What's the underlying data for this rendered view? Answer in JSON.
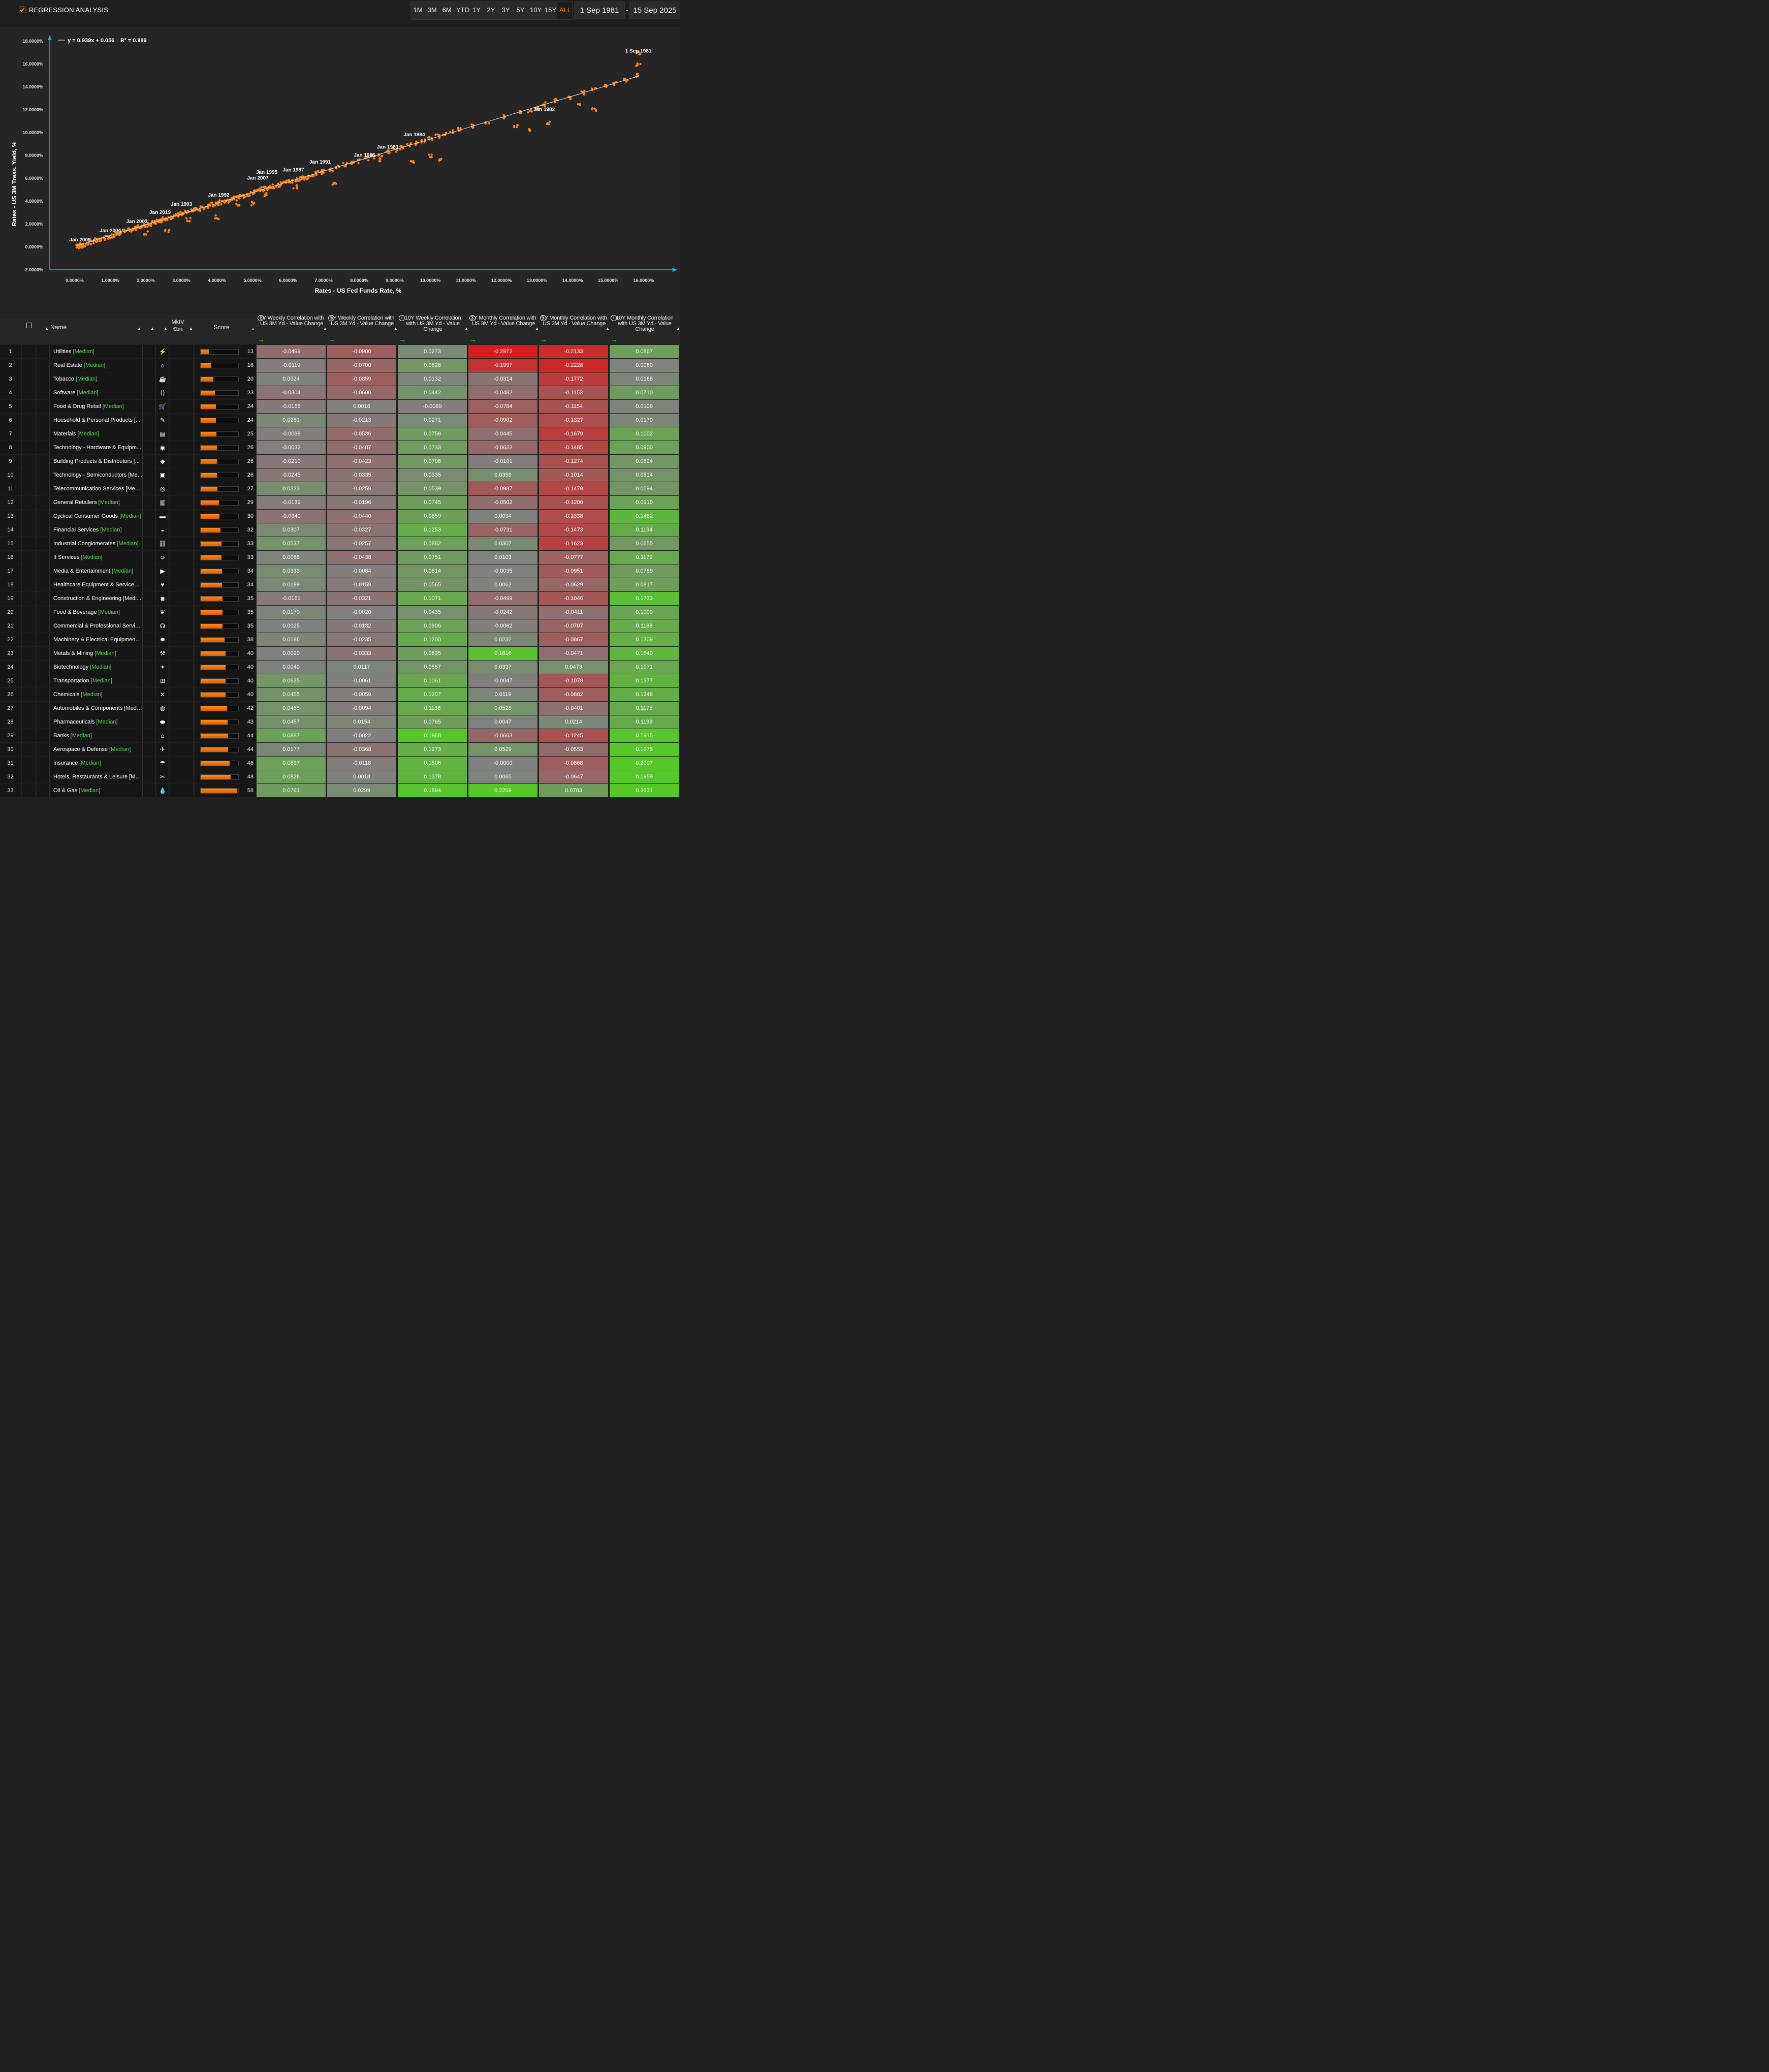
{
  "header": {
    "checkbox_label": "REGRESSION ANALYSIS",
    "ranges": [
      "1M",
      "3M",
      "6M",
      "YTD",
      "1Y",
      "2Y",
      "3Y",
      "5Y",
      "10Y",
      "15Y",
      "ALL"
    ],
    "active_range": "ALL",
    "date_from": "1 Sep 1981",
    "date_separator": "-",
    "date_to": "15 Sep 2025",
    "accent_color": "#ff7f11"
  },
  "chart_data": {
    "type": "scatter",
    "xlabel": "Rates - US Fed Funds Rate, %",
    "ylabel": "Rates - US 3M Treas. Yield, %",
    "xlim": [
      -0.7,
      16.95
    ],
    "ylim": [
      -2,
      18
    ],
    "x_ticks": [
      "0.0000%",
      "1.0000%",
      "2.0000%",
      "3.0000%",
      "4.0000%",
      "5.0000%",
      "6.0000%",
      "7.0000%",
      "8.0000%",
      "9.0000%",
      "10.0000%",
      "11.0000%",
      "12.0000%",
      "13.0000%",
      "14.0000%",
      "15.0000%",
      "16.0000%"
    ],
    "y_ticks": [
      "-2.0000%",
      "0.0000%",
      "2.0000%",
      "4.0000%",
      "6.0000%",
      "8.0000%",
      "10.0000%",
      "12.0000%",
      "14.0000%",
      "16.0000%",
      "18.0000%"
    ],
    "regression": {
      "label": "y = 0.939x + 0.056",
      "r2_label": "R² = 0.989",
      "slope": 0.939,
      "intercept": 0.056,
      "x_range": [
        0.05,
        15.85
      ]
    },
    "point_color": "#ff7f11",
    "annotations": [
      {
        "text": "1 Sep 1981",
        "x": 15.85,
        "y": 17.0
      },
      {
        "text": "Jan 1982",
        "x": 13.2,
        "y": 11.9
      },
      {
        "text": "Jan 1984",
        "x": 9.55,
        "y": 9.7
      },
      {
        "text": "Jan 1983",
        "x": 8.8,
        "y": 8.6
      },
      {
        "text": "Jan 1986",
        "x": 8.15,
        "y": 7.9
      },
      {
        "text": "Jan 1991",
        "x": 6.9,
        "y": 7.3
      },
      {
        "text": "Jan 1987",
        "x": 6.15,
        "y": 6.6
      },
      {
        "text": "Jan 1995",
        "x": 5.4,
        "y": 6.4
      },
      {
        "text": "Jan 2007",
        "x": 5.15,
        "y": 5.9
      },
      {
        "text": "Jan 1992",
        "x": 4.05,
        "y": 4.4
      },
      {
        "text": "Jan 1993",
        "x": 3.0,
        "y": 3.6
      },
      {
        "text": "Jan 2019",
        "x": 2.4,
        "y": 2.9
      },
      {
        "text": "Jan 2002",
        "x": 1.75,
        "y": 2.1
      },
      {
        "text": "Jan 2004",
        "x": 1.0,
        "y": 1.3
      },
      {
        "text": "Jan 2009",
        "x": 0.15,
        "y": 0.5
      }
    ],
    "points": [
      [
        0.1,
        0.05
      ],
      [
        0.12,
        0.1
      ],
      [
        0.15,
        0.05
      ],
      [
        0.2,
        0.15
      ],
      [
        0.25,
        0.1
      ],
      [
        0.3,
        0.2
      ],
      [
        0.4,
        0.3
      ],
      [
        0.5,
        0.45
      ],
      [
        0.6,
        0.6
      ],
      [
        0.7,
        0.55
      ],
      [
        0.8,
        0.7
      ],
      [
        0.9,
        0.85
      ],
      [
        1.0,
        0.95
      ],
      [
        1.1,
        1.0
      ],
      [
        1.2,
        1.1
      ],
      [
        1.3,
        1.2
      ],
      [
        1.4,
        1.35
      ],
      [
        1.5,
        1.45
      ],
      [
        1.6,
        1.5
      ],
      [
        1.7,
        1.6
      ],
      [
        1.75,
        1.7
      ],
      [
        1.8,
        1.75
      ],
      [
        1.9,
        1.85
      ],
      [
        2.0,
        1.9
      ],
      [
        2.1,
        2.0
      ],
      [
        2.2,
        2.1
      ],
      [
        2.3,
        2.15
      ],
      [
        2.35,
        2.3
      ],
      [
        2.4,
        2.35
      ],
      [
        2.45,
        2.3
      ],
      [
        2.5,
        2.4
      ],
      [
        2.6,
        2.5
      ],
      [
        2.7,
        2.6
      ],
      [
        2.8,
        2.7
      ],
      [
        2.9,
        2.8
      ],
      [
        3.0,
        2.9
      ],
      [
        3.1,
        3.0
      ],
      [
        3.2,
        3.05
      ],
      [
        3.3,
        3.2
      ],
      [
        3.4,
        3.3
      ],
      [
        3.5,
        3.3
      ],
      [
        3.6,
        3.45
      ],
      [
        3.7,
        3.5
      ],
      [
        3.8,
        3.6
      ],
      [
        3.9,
        3.7
      ],
      [
        4.0,
        3.8
      ],
      [
        4.1,
        3.9
      ],
      [
        4.2,
        4.0
      ],
      [
        4.3,
        4.05
      ],
      [
        4.4,
        4.2
      ],
      [
        4.5,
        4.25
      ],
      [
        4.6,
        4.35
      ],
      [
        4.7,
        4.45
      ],
      [
        4.8,
        4.5
      ],
      [
        4.9,
        4.6
      ],
      [
        5.0,
        4.75
      ],
      [
        5.1,
        4.85
      ],
      [
        5.2,
        4.9
      ],
      [
        5.25,
        5.05
      ],
      [
        5.3,
        5.1
      ],
      [
        5.4,
        5.15
      ],
      [
        5.5,
        5.2
      ],
      [
        5.6,
        5.3
      ],
      [
        5.7,
        5.4
      ],
      [
        5.8,
        5.5
      ],
      [
        5.9,
        5.55
      ],
      [
        6.0,
        5.7
      ],
      [
        6.1,
        5.75
      ],
      [
        6.2,
        5.85
      ],
      [
        6.3,
        5.9
      ],
      [
        6.4,
        6.0
      ],
      [
        6.5,
        6.1
      ],
      [
        6.6,
        6.2
      ],
      [
        6.7,
        6.3
      ],
      [
        6.8,
        6.4
      ],
      [
        6.9,
        6.5
      ],
      [
        7.0,
        6.6
      ],
      [
        7.2,
        6.8
      ],
      [
        7.4,
        6.95
      ],
      [
        7.6,
        7.2
      ],
      [
        7.8,
        7.35
      ],
      [
        8.0,
        7.5
      ],
      [
        8.2,
        7.75
      ],
      [
        8.4,
        7.9
      ],
      [
        8.6,
        8.1
      ],
      [
        8.8,
        8.3
      ],
      [
        9.0,
        8.5
      ],
      [
        9.2,
        8.7
      ],
      [
        9.4,
        8.9
      ],
      [
        9.6,
        9.1
      ],
      [
        9.8,
        9.3
      ],
      [
        10.0,
        9.5
      ],
      [
        10.2,
        9.7
      ],
      [
        10.4,
        9.9
      ],
      [
        10.6,
        10.1
      ],
      [
        10.8,
        10.3
      ],
      [
        11.2,
        10.6
      ],
      [
        11.6,
        10.9
      ],
      [
        12.1,
        11.4
      ],
      [
        12.5,
        11.8
      ],
      [
        12.8,
        11.9
      ],
      [
        13.0,
        12.2
      ],
      [
        13.2,
        12.5
      ],
      [
        13.5,
        12.8
      ],
      [
        13.9,
        13.1
      ],
      [
        14.3,
        13.5
      ],
      [
        14.6,
        13.8
      ],
      [
        14.9,
        14.0
      ],
      [
        15.2,
        14.3
      ],
      [
        15.5,
        14.6
      ],
      [
        15.85,
        15.0
      ],
      [
        15.85,
        16.0
      ],
      [
        15.85,
        17.0
      ],
      [
        2.0,
        1.2
      ],
      [
        2.6,
        1.4
      ],
      [
        3.2,
        2.4
      ],
      [
        4.0,
        2.6
      ],
      [
        4.6,
        3.7
      ],
      [
        5.0,
        3.8
      ],
      [
        5.4,
        4.6
      ],
      [
        6.2,
        5.3
      ],
      [
        7.3,
        5.6
      ],
      [
        8.6,
        7.6
      ],
      [
        9.5,
        7.5
      ],
      [
        10.0,
        7.9
      ],
      [
        10.3,
        7.6
      ],
      [
        12.4,
        10.6
      ],
      [
        12.8,
        10.3
      ],
      [
        13.3,
        10.8
      ],
      [
        14.2,
        12.5
      ],
      [
        14.6,
        12.0
      ]
    ]
  },
  "table": {
    "columns": {
      "name": "Name",
      "mktv": "MktV €bn",
      "score": "Score",
      "metrics": [
        "3Y Weekly Correlation with US 3M Yd - Value Change",
        "5Y Weekly Correlation with US 3M Yd - Value Change",
        "10Y Weekly Correlation with US 3M Yd - Value Change",
        "3Y Monthly Correlation with US 3M Yd - Value Change",
        "5Y Monthly Correlation with US 3M Yd - Value Change",
        "10Y Monthly Correlation with US 3M Yd - Value Change"
      ]
    },
    "median_tag": "[Median]",
    "rows": [
      {
        "rank": "1",
        "name": "Utilities",
        "icon": "⚡",
        "score": 13,
        "vals": [
          "-0.0499",
          "-0.0900",
          "0.0273",
          "-0.2972",
          "-0.2133",
          "0.0867"
        ]
      },
      {
        "rank": "2",
        "name": "Real Estate",
        "icon": "⌂",
        "score": 16,
        "vals": [
          "-0.0119",
          "-0.0700",
          "0.0628",
          "-0.1997",
          "-0.2228",
          "0.0060"
        ]
      },
      {
        "rank": "3",
        "name": "Tobacco",
        "icon": "☕",
        "score": 20,
        "vals": [
          "0.0024",
          "-0.0859",
          "0.0132",
          "-0.0314",
          "-0.1772",
          "0.0168"
        ]
      },
      {
        "rank": "4",
        "name": "Software",
        "icon": "⟨⟩",
        "score": 23,
        "vals": [
          "-0.0304",
          "-0.0600",
          "0.0442",
          "-0.0482",
          "-0.1153",
          "0.0710"
        ]
      },
      {
        "rank": "5",
        "name": "Food & Drug Retail",
        "icon": "🛒",
        "score": 24,
        "vals": [
          "-0.0166",
          "0.0016",
          "-0.0089",
          "-0.0784",
          "-0.1154",
          "0.0109"
        ]
      },
      {
        "rank": "6",
        "name": "Household & Personal Products [...",
        "icon": "✎",
        "score": 24,
        "vals": [
          "0.0261",
          "-0.0213",
          "0.0271",
          "-0.0902",
          "-0.1327",
          "0.0170"
        ]
      },
      {
        "rank": "7",
        "name": "Materials",
        "icon": "▤",
        "score": 25,
        "vals": [
          "-0.0088",
          "-0.0536",
          "0.0758",
          "-0.0445",
          "-0.1679",
          "0.1002"
        ]
      },
      {
        "rank": "8",
        "name": "Technology - Hardware & Equipm...",
        "icon": "◉",
        "score": 26,
        "vals": [
          "-0.0032",
          "-0.0487",
          "0.0733",
          "-0.0622",
          "-0.1485",
          "0.0900"
        ]
      },
      {
        "rank": "9",
        "name": "Building Products & Distributors [...",
        "icon": "◆",
        "score": 26,
        "vals": [
          "-0.0210",
          "-0.0423",
          "0.0708",
          "-0.0101",
          "-0.1274",
          "0.0624"
        ]
      },
      {
        "rank": "10",
        "name": "Technology - Semiconductors [Me...",
        "icon": "▣",
        "score": 26,
        "vals": [
          "-0.0245",
          "-0.0335",
          "0.0335",
          "0.0359",
          "-0.1014",
          "0.0514"
        ]
      },
      {
        "rank": "11",
        "name": "Telecommunication Services [Med...",
        "icon": "◎",
        "score": 27,
        "vals": [
          "0.0323",
          "-0.0259",
          "0.0539",
          "-0.0987",
          "-0.1479",
          "0.0594"
        ]
      },
      {
        "rank": "12",
        "name": "General Retailers",
        "icon": "▥",
        "score": 29,
        "vals": [
          "-0.0139",
          "-0.0196",
          "0.0745",
          "-0.0502",
          "-0.1200",
          "0.0910"
        ]
      },
      {
        "rank": "13",
        "name": "Cyclical Consumer Goods",
        "icon": "▬",
        "score": 30,
        "vals": [
          "-0.0340",
          "-0.0440",
          "0.0859",
          "0.0034",
          "-0.1338",
          "0.1482"
        ]
      },
      {
        "rank": "14",
        "name": "Financial Services",
        "icon": "◒",
        "score": 32,
        "vals": [
          "0.0307",
          "-0.0327",
          "0.1253",
          "-0.0731",
          "-0.1473",
          "0.1194"
        ]
      },
      {
        "rank": "15",
        "name": "Industrial Conglomerates",
        "icon": "⛓",
        "score": 33,
        "vals": [
          "0.0537",
          "-0.0257",
          "0.0882",
          "0.0307",
          "-0.1623",
          "0.0655"
        ]
      },
      {
        "rank": "16",
        "name": "It Services",
        "icon": "☺",
        "score": 33,
        "vals": [
          "0.0086",
          "-0.0438",
          "0.0751",
          "0.0103",
          "-0.0777",
          "0.1179"
        ]
      },
      {
        "rank": "17",
        "name": "Media & Entertainment",
        "icon": "▶",
        "score": 34,
        "vals": [
          "0.0333",
          "-0.0084",
          "0.0614",
          "-0.0035",
          "-0.0951",
          "0.0789"
        ]
      },
      {
        "rank": "18",
        "name": "Healthcare Equipment & Services ...",
        "icon": "♥",
        "score": 34,
        "vals": [
          "0.0189",
          "-0.0159",
          "0.0565",
          "0.0062",
          "-0.0629",
          "0.0817"
        ]
      },
      {
        "rank": "19",
        "name": "Construction & Engineering [Medi...",
        "icon": "◙",
        "score": 35,
        "vals": [
          "-0.0161",
          "-0.0321",
          "0.1071",
          "-0.0499",
          "-0.1046",
          "0.1733"
        ]
      },
      {
        "rank": "20",
        "name": "Food & Beverage",
        "icon": "❦",
        "score": 35,
        "vals": [
          "0.0179",
          "-0.0020",
          "0.0435",
          "-0.0242",
          "-0.0411",
          "0.1009"
        ]
      },
      {
        "rank": "21",
        "name": "Commercial & Professional Servic...",
        "icon": "☊",
        "score": 35,
        "vals": [
          "0.0025",
          "-0.0182",
          "0.0906",
          "-0.0062",
          "-0.0707",
          "0.1188"
        ]
      },
      {
        "rank": "22",
        "name": "Machinery & Electrical Equipment ...",
        "icon": "✹",
        "score": 38,
        "vals": [
          "0.0186",
          "-0.0235",
          "0.1200",
          "0.0232",
          "-0.0867",
          "0.1309"
        ]
      },
      {
        "rank": "23",
        "name": "Metals & Mining",
        "icon": "⚒",
        "score": 40,
        "vals": [
          "0.0020",
          "-0.0333",
          "0.0835",
          "0.1816",
          "-0.0471",
          "0.1540"
        ]
      },
      {
        "rank": "24",
        "name": "Biotechnology",
        "icon": "✦",
        "score": 40,
        "vals": [
          "0.0040",
          "0.0117",
          "0.0557",
          "0.0337",
          "0.0473",
          "0.1071"
        ]
      },
      {
        "rank": "25",
        "name": "Transportation",
        "icon": "⊞",
        "score": 40,
        "vals": [
          "0.0625",
          "-0.0061",
          "0.1061",
          "-0.0047",
          "-0.1078",
          "0.1377"
        ]
      },
      {
        "rank": "26",
        "name": "Chemicals",
        "icon": "✕",
        "score": 40,
        "vals": [
          "0.0455",
          "-0.0059",
          "0.1207",
          "0.0119",
          "-0.0882",
          "0.1248"
        ]
      },
      {
        "rank": "27",
        "name": "Automobiles & Components [Medi...",
        "icon": "◍",
        "score": 42,
        "vals": [
          "0.0465",
          "-0.0094",
          "0.1138",
          "0.0528",
          "-0.0401",
          "0.1175"
        ]
      },
      {
        "rank": "28",
        "name": "Pharmaceuticals",
        "icon": "⬬",
        "score": 43,
        "vals": [
          "0.0457",
          "0.0154",
          "0.0765",
          "0.0047",
          "0.0214",
          "0.1199"
        ]
      },
      {
        "rank": "29",
        "name": "Banks",
        "icon": "⌂",
        "score": 44,
        "vals": [
          "0.0887",
          "-0.0022",
          "0.1968",
          "-0.0663",
          "-0.1245",
          "0.1915"
        ]
      },
      {
        "rank": "30",
        "name": "Aerospace & Defense",
        "icon": "✈",
        "score": 44,
        "vals": [
          "0.0177",
          "-0.0368",
          "0.1273",
          "0.0529",
          "-0.0553",
          "0.1975"
        ]
      },
      {
        "rank": "31",
        "name": "Insurance",
        "icon": "☂",
        "score": 46,
        "vals": [
          "0.0897",
          "-0.0118",
          "0.1506",
          "-0.0000",
          "-0.0868",
          "0.2007"
        ]
      },
      {
        "rank": "32",
        "name": "Hotels, Restaurants & Leisure [Me...",
        "icon": "✂",
        "score": 48,
        "vals": [
          "0.0826",
          "0.0018",
          "0.1378",
          "0.0065",
          "-0.0647",
          "0.1959"
        ]
      },
      {
        "rank": "33",
        "name": "Oil & Gas",
        "icon": "💧",
        "score": 58,
        "vals": [
          "0.0761",
          "0.0299",
          "0.1894",
          "0.2209",
          "0.0783",
          "0.2631"
        ]
      }
    ]
  }
}
